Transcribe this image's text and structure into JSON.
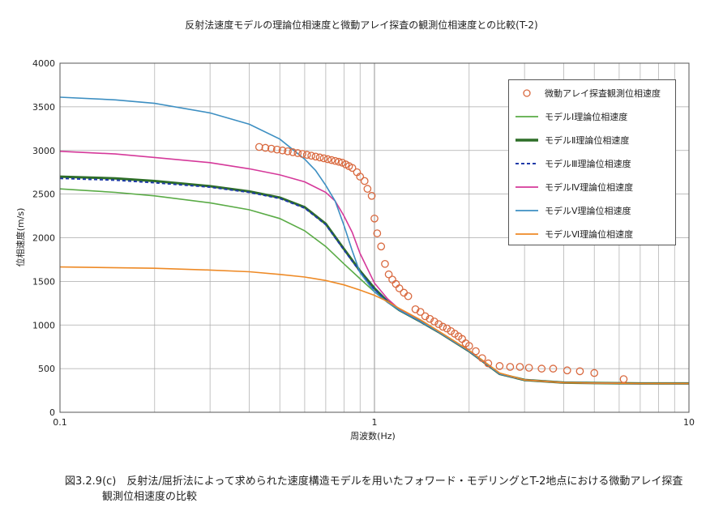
{
  "chart_data": {
    "type": "scatter",
    "title": "反射法速度モデルの理論位相速度と微動アレイ探査の観測位相速度との比較(T-2)",
    "xlabel": "周波数(Hz)",
    "ylabel": "位相速度(m/s)",
    "xscale": "log",
    "xlim": [
      0.1,
      10
    ],
    "ylim": [
      0,
      4000
    ],
    "x_ticks": [
      "0.1",
      "1",
      "10"
    ],
    "y_ticks": [
      "0",
      "500",
      "1000",
      "1500",
      "2000",
      "2500",
      "3000",
      "3500",
      "4000"
    ],
    "grid": true,
    "legend_position": "top-right",
    "series": [
      {
        "name": "微動アレイ探査観測位相速度",
        "kind": "marker",
        "color": "#d9693f",
        "x": [
          0.43,
          0.45,
          0.47,
          0.49,
          0.51,
          0.53,
          0.55,
          0.57,
          0.59,
          0.61,
          0.63,
          0.65,
          0.67,
          0.69,
          0.71,
          0.73,
          0.75,
          0.77,
          0.79,
          0.81,
          0.83,
          0.85,
          0.88,
          0.9,
          0.93,
          0.95,
          0.98,
          1.0,
          1.02,
          1.05,
          1.08,
          1.11,
          1.14,
          1.17,
          1.2,
          1.24,
          1.28,
          1.35,
          1.4,
          1.45,
          1.5,
          1.55,
          1.6,
          1.65,
          1.7,
          1.75,
          1.8,
          1.85,
          1.9,
          1.95,
          2.0,
          2.1,
          2.2,
          2.3,
          2.5,
          2.7,
          2.9,
          3.1,
          3.4,
          3.7,
          4.1,
          4.5,
          5.0,
          6.2
        ],
        "y": [
          3040,
          3030,
          3020,
          3010,
          3000,
          2990,
          2980,
          2970,
          2960,
          2950,
          2940,
          2930,
          2920,
          2910,
          2900,
          2890,
          2880,
          2870,
          2860,
          2840,
          2820,
          2800,
          2750,
          2700,
          2650,
          2560,
          2480,
          2220,
          2050,
          1900,
          1700,
          1580,
          1520,
          1470,
          1420,
          1370,
          1330,
          1180,
          1150,
          1100,
          1070,
          1040,
          1010,
          980,
          960,
          930,
          900,
          870,
          840,
          790,
          760,
          700,
          620,
          560,
          530,
          520,
          520,
          510,
          500,
          500,
          480,
          470,
          450,
          380
        ]
      },
      {
        "name": "モデルⅠ理論位相速度",
        "kind": "line",
        "color": "#5aab46",
        "x": [
          0.1,
          0.15,
          0.2,
          0.3,
          0.4,
          0.5,
          0.6,
          0.7,
          0.8,
          0.9,
          1.0,
          1.1,
          1.2,
          1.4,
          1.6,
          2.0,
          2.5,
          3,
          4,
          5,
          7,
          10
        ],
        "y": [
          2560,
          2520,
          2480,
          2400,
          2320,
          2220,
          2080,
          1900,
          1700,
          1530,
          1380,
          1260,
          1170,
          1040,
          920,
          700,
          440,
          370,
          340,
          335,
          330,
          330
        ]
      },
      {
        "name": "モデルⅡ理論位相速度",
        "kind": "line",
        "color": "#2e6e28",
        "x": [
          0.1,
          0.15,
          0.2,
          0.3,
          0.4,
          0.5,
          0.6,
          0.7,
          0.8,
          0.9,
          1.0,
          1.1,
          1.2,
          1.4,
          1.6,
          2.0,
          2.5,
          3,
          4,
          5,
          7,
          10
        ],
        "y": [
          2700,
          2680,
          2650,
          2590,
          2530,
          2460,
          2350,
          2160,
          1870,
          1620,
          1420,
          1270,
          1170,
          1040,
          920,
          700,
          440,
          370,
          340,
          335,
          330,
          330
        ]
      },
      {
        "name": "モデルⅢ理論位相速度",
        "kind": "dashed",
        "color": "#1f3aa8",
        "x": [
          0.1,
          0.15,
          0.2,
          0.3,
          0.4,
          0.5,
          0.6,
          0.7,
          0.8,
          0.9,
          1.0,
          1.1,
          1.2,
          1.4,
          1.6,
          2.0,
          2.5,
          3,
          4,
          5,
          7,
          10
        ],
        "y": [
          2680,
          2660,
          2630,
          2580,
          2520,
          2450,
          2340,
          2150,
          1860,
          1610,
          1410,
          1270,
          1170,
          1040,
          920,
          700,
          440,
          370,
          340,
          335,
          330,
          330
        ]
      },
      {
        "name": "モデルⅣ理論位相速度",
        "kind": "line",
        "color": "#d5399a",
        "x": [
          0.1,
          0.15,
          0.2,
          0.3,
          0.4,
          0.5,
          0.6,
          0.7,
          0.75,
          0.8,
          0.85,
          0.9,
          1.0,
          1.1,
          1.2,
          1.4,
          1.6,
          2.0,
          2.5,
          3,
          4,
          5,
          7,
          10
        ],
        "y": [
          2990,
          2960,
          2920,
          2860,
          2790,
          2720,
          2640,
          2520,
          2420,
          2250,
          2060,
          1820,
          1480,
          1300,
          1180,
          1040,
          920,
          700,
          440,
          370,
          340,
          335,
          330,
          330
        ]
      },
      {
        "name": "モデルⅤ理論位相速度",
        "kind": "line",
        "color": "#3d8fc2",
        "x": [
          0.1,
          0.15,
          0.2,
          0.3,
          0.4,
          0.5,
          0.6,
          0.65,
          0.7,
          0.75,
          0.8,
          0.85,
          0.9,
          1.0,
          1.1,
          1.2,
          1.4,
          1.6,
          2.0,
          2.5,
          3,
          4,
          5,
          7,
          10
        ],
        "y": [
          3610,
          3580,
          3540,
          3430,
          3300,
          3130,
          2900,
          2770,
          2600,
          2420,
          2140,
          1850,
          1600,
          1380,
          1260,
          1170,
          1040,
          920,
          700,
          440,
          370,
          340,
          335,
          330,
          330
        ]
      },
      {
        "name": "モデルⅥ理論位相速度",
        "kind": "line",
        "color": "#ee8a26",
        "x": [
          0.1,
          0.2,
          0.3,
          0.4,
          0.5,
          0.6,
          0.7,
          0.8,
          0.9,
          1.0,
          1.1,
          1.2,
          1.4,
          1.6,
          2.0,
          2.5,
          3,
          4,
          5,
          7,
          10
        ],
        "y": [
          1665,
          1650,
          1630,
          1610,
          1580,
          1550,
          1510,
          1460,
          1400,
          1340,
          1270,
          1190,
          1060,
          930,
          710,
          450,
          370,
          340,
          335,
          330,
          330
        ]
      }
    ]
  },
  "caption": {
    "line1": "図3.2.9(c)　反射法/屈折法によって求められた速度構造モデルを用いたフォワード・モデリングとT-2地点における微動アレイ探査",
    "line2": "観測位相速度の比較"
  }
}
